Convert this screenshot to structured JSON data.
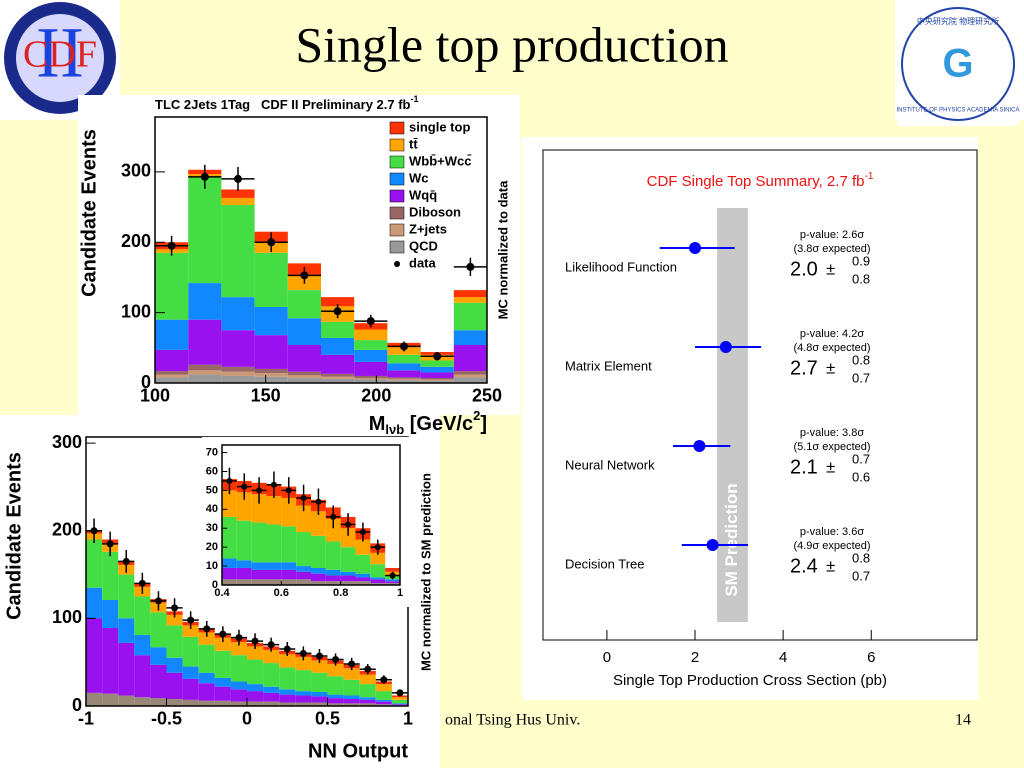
{
  "slide": {
    "title": "Single top production",
    "footer": "onal Tsing Hus Univ.",
    "page_number": "14",
    "logo_left": {
      "text": "CDF",
      "roman": "II"
    },
    "logo_right": {
      "top": "中央研究院 物理研究所",
      "bottom": "INSTITUTE OF PHYSICS ACADEMIA SINICA"
    }
  },
  "chart_data": [
    {
      "type": "histogram",
      "title": "TLC 2Jets 1Tag   CDF II Preliminary 2.7 fb",
      "title_superscript": "-1",
      "ylabel": "Candidate Events",
      "ylabel_right": "MC normalized to data",
      "xlabel": {
        "main": "M",
        "sub": "lνb",
        "rest": " [GeV/c",
        "sup": "2",
        "end": "]"
      },
      "bins": [
        100,
        115,
        130,
        145,
        160,
        175,
        190,
        205,
        220,
        235,
        250
      ],
      "xlim": [
        100,
        250
      ],
      "xticks": [
        100,
        150,
        200,
        250
      ],
      "ylim": [
        0,
        378
      ],
      "yticks": [
        0,
        100,
        200,
        300
      ],
      "legend": "upper right",
      "series": [
        {
          "name": "single top",
          "color": "#ff3300",
          "values": [
            10,
            6,
            12,
            15,
            16,
            13,
            9,
            6,
            4,
            10
          ]
        },
        {
          "name": "tt̄",
          "color": "#ffa500",
          "values": [
            5,
            5,
            10,
            15,
            22,
            22,
            15,
            11,
            8,
            8
          ]
        },
        {
          "name": "Wbb̄+Wcc̄",
          "color": "#44dd44",
          "values": [
            95,
            150,
            131,
            77,
            40,
            23,
            14,
            12,
            9,
            39
          ]
        },
        {
          "name": "Wc",
          "color": "#1188ff",
          "values": [
            43,
            52,
            47,
            40,
            38,
            24,
            17,
            10,
            8,
            21
          ]
        },
        {
          "name": "Wqq̄",
          "color": "#9911ee",
          "values": [
            30,
            64,
            52,
            48,
            38,
            27,
            20,
            10,
            8,
            37
          ]
        },
        {
          "name": "Diboson",
          "color": "#996666",
          "values": [
            5,
            8,
            7,
            6,
            5,
            4,
            3,
            2,
            2,
            5
          ]
        },
        {
          "name": "Z+jets",
          "color": "#cc9977",
          "values": [
            4,
            6,
            6,
            5,
            4,
            3,
            2,
            2,
            2,
            4
          ]
        },
        {
          "name": "QCD",
          "color": "#999999",
          "values": [
            8,
            12,
            10,
            9,
            7,
            6,
            5,
            4,
            3,
            8
          ]
        }
      ],
      "points": {
        "name": "data",
        "color": "#000000",
        "values": [
          195,
          293,
          290,
          200,
          153,
          102,
          88,
          52,
          38,
          165
        ],
        "errors": [
          14,
          17,
          17,
          14,
          12,
          10,
          9,
          7,
          6,
          13
        ]
      }
    },
    {
      "type": "histogram",
      "ylabel": "Candidate Events",
      "ylabel_right": "MC normalized to SM prediction",
      "xlabel_text": "NN Output",
      "bins": [
        -1,
        -0.9,
        -0.8,
        -0.7,
        -0.6,
        -0.5,
        -0.4,
        -0.3,
        -0.2,
        -0.1,
        0,
        0.1,
        0.2,
        0.3,
        0.4,
        0.5,
        0.6,
        0.7,
        0.8,
        0.9,
        1
      ],
      "xlim": [
        -1,
        1
      ],
      "xticks": [
        -1,
        -0.5,
        0,
        0.5,
        1
      ],
      "ylim": [
        0,
        307
      ],
      "yticks": [
        0,
        100,
        200,
        300
      ],
      "series": [
        {
          "color": "#ff3300",
          "values": [
            3,
            4,
            4,
            4,
            4,
            4,
            4,
            4,
            4,
            4,
            4,
            4,
            4,
            4,
            4,
            4,
            4,
            4,
            3,
            2
          ]
        },
        {
          "color": "#ffa500",
          "values": [
            7,
            10,
            11,
            11,
            11,
            12,
            13,
            14,
            15,
            15,
            15,
            15,
            15,
            15,
            14,
            14,
            13,
            11,
            8,
            3
          ]
        },
        {
          "color": "#44dd44",
          "values": [
            55,
            55,
            50,
            44,
            40,
            37,
            34,
            32,
            31,
            30,
            28,
            27,
            25,
            24,
            22,
            21,
            18,
            15,
            10,
            4
          ]
        },
        {
          "color": "#1188ff",
          "values": [
            35,
            32,
            28,
            23,
            20,
            17,
            14,
            12,
            10,
            9,
            8,
            7,
            6,
            5,
            5,
            4,
            4,
            3,
            2,
            1
          ]
        },
        {
          "color": "#9911ee",
          "values": [
            85,
            75,
            60,
            48,
            38,
            30,
            24,
            20,
            16,
            14,
            12,
            10,
            9,
            8,
            7,
            6,
            5,
            4,
            3,
            1
          ]
        },
        {
          "color": "#998877",
          "values": [
            15,
            14,
            12,
            10,
            9,
            8,
            7,
            6,
            6,
            5,
            5,
            5,
            4,
            4,
            4,
            3,
            3,
            3,
            2,
            1
          ]
        }
      ],
      "points": {
        "color": "#000000",
        "values": [
          200,
          185,
          165,
          140,
          120,
          112,
          98,
          88,
          82,
          78,
          74,
          70,
          65,
          60,
          57,
          53,
          48,
          42,
          30,
          15
        ],
        "errors": [
          14,
          14,
          13,
          12,
          11,
          11,
          10,
          9,
          9,
          9,
          9,
          8,
          8,
          8,
          8,
          7,
          7,
          6,
          5,
          4
        ]
      }
    },
    {
      "type": "histogram",
      "bins": [
        0.4,
        0.45,
        0.5,
        0.55,
        0.6,
        0.65,
        0.7,
        0.75,
        0.8,
        0.85,
        0.9,
        0.95,
        1
      ],
      "xlim": [
        0.4,
        1
      ],
      "xticks": [
        0.4,
        0.6,
        0.8,
        1
      ],
      "ylim": [
        0,
        74
      ],
      "yticks": [
        0,
        10,
        20,
        30,
        40,
        50,
        60,
        70
      ],
      "series": [
        {
          "color": "#ff3300",
          "values": [
            6,
            6,
            6,
            6,
            6,
            6,
            6,
            6,
            6,
            6,
            5,
            2
          ]
        },
        {
          "color": "#ffa500",
          "values": [
            14,
            15,
            15,
            15,
            15,
            14,
            13,
            12,
            10,
            8,
            6,
            2
          ]
        },
        {
          "color": "#44dd44",
          "values": [
            22,
            21,
            21,
            20,
            19,
            18,
            17,
            15,
            13,
            10,
            7,
            2
          ]
        },
        {
          "color": "#1188ff",
          "values": [
            5,
            4,
            4,
            4,
            4,
            3,
            3,
            3,
            2,
            2,
            1,
            1
          ]
        },
        {
          "color": "#9911ee",
          "values": [
            6,
            6,
            5,
            5,
            5,
            4,
            4,
            3,
            3,
            2,
            2,
            1
          ]
        },
        {
          "color": "#998877",
          "values": [
            3,
            3,
            3,
            3,
            3,
            3,
            2,
            2,
            2,
            2,
            1,
            1
          ]
        }
      ],
      "points": {
        "color": "#000000",
        "values": [
          55,
          52,
          50,
          53,
          50,
          46,
          44,
          36,
          32,
          28,
          20,
          5
        ],
        "errors": [
          7,
          7,
          7,
          7,
          7,
          7,
          7,
          6,
          6,
          5,
          4,
          2
        ]
      }
    },
    {
      "type": "errorbar",
      "title": "CDF Single Top Summary, 2.7 fb",
      "title_superscript": "-1",
      "xlabel": "Single Top Production Cross Section (pb)",
      "xlim": [
        -1.45,
        8.4
      ],
      "xticks": [
        0,
        2,
        4,
        6
      ],
      "sm_band": [
        2.5,
        3.2
      ],
      "sm_label": "SM Prediction",
      "pm": "±",
      "color": "#0000ff",
      "categories": [
        "Likelihood Function",
        "Matrix Element",
        "Neural Network",
        "Decision Tree"
      ],
      "values": [
        2.0,
        2.7,
        2.1,
        2.4
      ],
      "value_labels": [
        "2.0",
        "2.7",
        "2.1",
        "2.4"
      ],
      "err_plus": [
        0.9,
        0.8,
        0.7,
        0.8
      ],
      "err_minus": [
        0.8,
        0.7,
        0.6,
        0.7
      ],
      "pvalue_labels": [
        "p-value: 2.6σ",
        "p-value: 4.2σ",
        "p-value: 3.8σ",
        "p-value: 3.6σ"
      ],
      "expected_labels": [
        "(3.8σ expected)",
        "(4.8σ expected)",
        "(5.1σ expected)",
        "(4.9σ expected)"
      ]
    }
  ]
}
